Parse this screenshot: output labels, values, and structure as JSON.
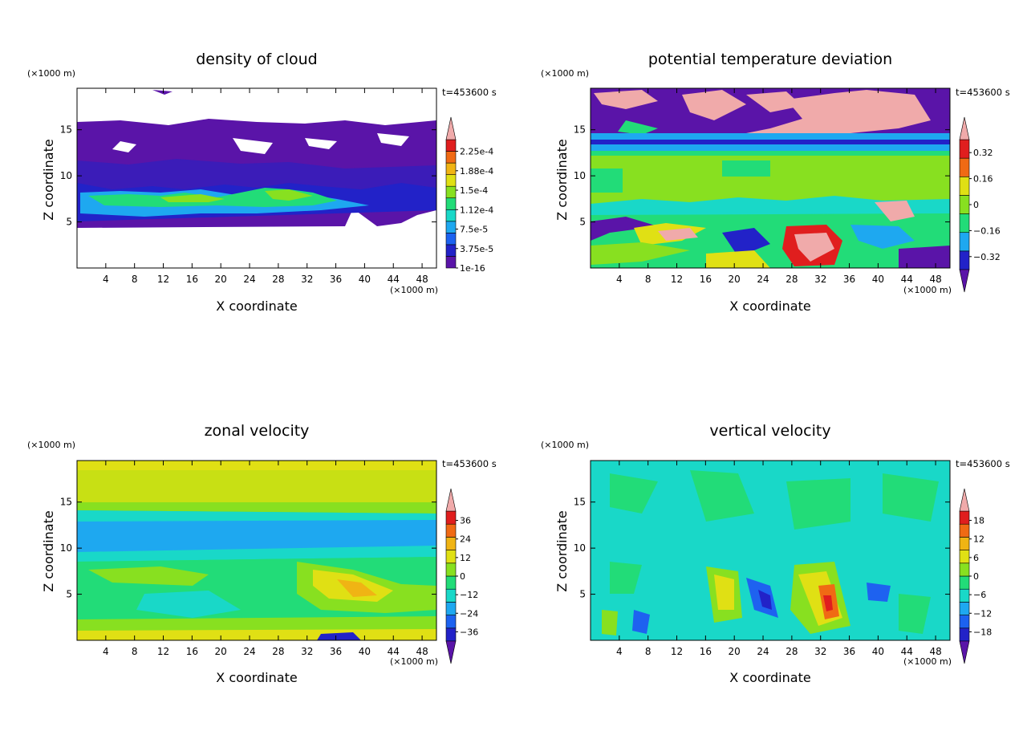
{
  "chart_data": [
    {
      "type": "heatmap",
      "title": "density of cloud",
      "xlabel": "X coordinate",
      "ylabel": "Z coordinate",
      "x_unit": "(×1000 m)",
      "y_unit": "(×1000 m)",
      "time_label": "t=453600 s",
      "xlim": [
        0,
        50
      ],
      "ylim": [
        0,
        19.5
      ],
      "x_ticks": [
        4,
        8,
        12,
        16,
        20,
        24,
        28,
        32,
        36,
        40,
        44,
        48
      ],
      "y_ticks": [
        5,
        10,
        15
      ],
      "colorbar": {
        "labels": [
          "1e-16",
          "3.75e-5",
          "7.5e-5",
          "1.12e-4",
          "1.5e-4",
          "1.88e-4",
          "2.25e-4"
        ],
        "colors": [
          "#5a14a8",
          "#2222c8",
          "#1c62f0",
          "#1ea8f0",
          "#19d8c8",
          "#22dc78",
          "#88e020",
          "#e0e014",
          "#f0b414",
          "#f06a14",
          "#e01e1e",
          "#f0aaaa"
        ],
        "top_triangle": true,
        "bottom_triangle": false
      }
    },
    {
      "type": "heatmap",
      "title": "potential temperature deviation",
      "xlabel": "X coordinate",
      "ylabel": "Z coordinate",
      "x_unit": "(×1000 m)",
      "y_unit": "(×1000 m)",
      "time_label": "t=453600 s",
      "xlim": [
        0,
        50
      ],
      "ylim": [
        0,
        19.5
      ],
      "x_ticks": [
        4,
        8,
        12,
        16,
        20,
        24,
        28,
        32,
        36,
        40,
        44,
        48
      ],
      "y_ticks": [
        5,
        10,
        15
      ],
      "colorbar": {
        "labels": [
          "−0.32",
          "−0.16",
          "0",
          "0.16",
          "0.32"
        ],
        "colors": [
          "#5a14a8",
          "#2222c8",
          "#1ea8f0",
          "#22dc78",
          "#88e020",
          "#e0e014",
          "#f06a14",
          "#e01e1e",
          "#f0aaaa"
        ],
        "top_triangle": true,
        "bottom_triangle": true
      }
    },
    {
      "type": "heatmap",
      "title": "zonal velocity",
      "xlabel": "X coordinate",
      "ylabel": "Z coordinate",
      "x_unit": "(×1000 m)",
      "y_unit": "(×1000 m)",
      "time_label": "t=453600 s",
      "xlim": [
        0,
        50
      ],
      "ylim": [
        0,
        19.5
      ],
      "x_ticks": [
        4,
        8,
        12,
        16,
        20,
        24,
        28,
        32,
        36,
        40,
        44,
        48
      ],
      "y_ticks": [
        5,
        10,
        15
      ],
      "colorbar": {
        "labels": [
          "−36",
          "−24",
          "−12",
          "0",
          "12",
          "24",
          "36"
        ],
        "colors": [
          "#5a14a8",
          "#2222c8",
          "#1c62f0",
          "#1ea8f0",
          "#19d8c8",
          "#22dc78",
          "#88e020",
          "#e0e014",
          "#f0b414",
          "#f06a14",
          "#e01e1e",
          "#f0aaaa"
        ],
        "top_triangle": true,
        "bottom_triangle": true
      }
    },
    {
      "type": "heatmap",
      "title": "vertical velocity",
      "xlabel": "X coordinate",
      "ylabel": "Z coordinate",
      "x_unit": "(×1000 m)",
      "y_unit": "(×1000 m)",
      "time_label": "t=453600 s",
      "xlim": [
        0,
        50
      ],
      "ylim": [
        0,
        19.5
      ],
      "x_ticks": [
        4,
        8,
        12,
        16,
        20,
        24,
        28,
        32,
        36,
        40,
        44,
        48
      ],
      "y_ticks": [
        5,
        10,
        15
      ],
      "colorbar": {
        "labels": [
          "−18",
          "−12",
          "−6",
          "0",
          "6",
          "12",
          "18"
        ],
        "colors": [
          "#5a14a8",
          "#2222c8",
          "#1c62f0",
          "#1ea8f0",
          "#19d8c8",
          "#22dc78",
          "#88e020",
          "#e0e014",
          "#f0b414",
          "#f06a14",
          "#e01e1e",
          "#f0aaaa"
        ],
        "top_triangle": true,
        "bottom_triangle": true
      }
    }
  ]
}
